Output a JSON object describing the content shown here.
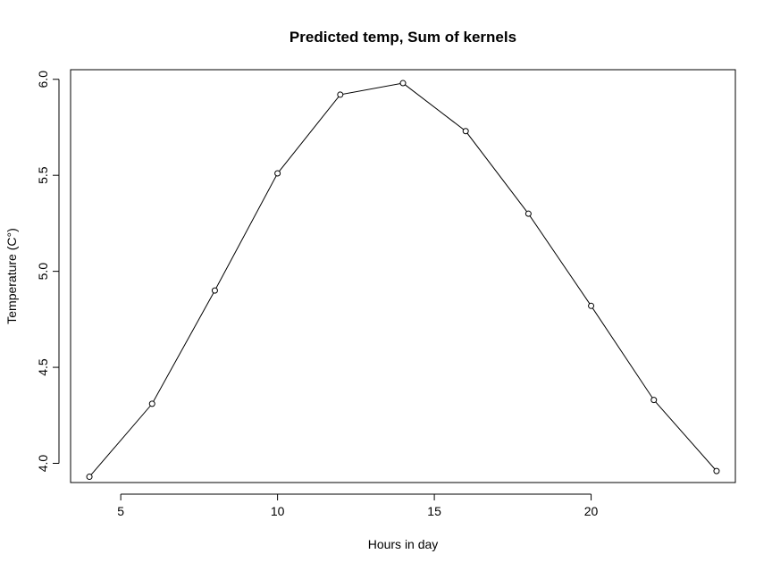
{
  "chart_data": {
    "type": "line",
    "title": "Predicted temp, Sum of kernels",
    "xlabel": "Hours in day",
    "ylabel": "Temperature (C°)",
    "xlim": [
      3.4,
      24.6
    ],
    "ylim": [
      3.9,
      6.05
    ],
    "x_ticks": [
      5,
      10,
      15,
      20
    ],
    "y_ticks": [
      4.0,
      4.5,
      5.0,
      5.5,
      6.0
    ],
    "x_tick_labels": [
      "5",
      "10",
      "15",
      "20"
    ],
    "y_tick_labels": [
      "4.0",
      "4.5",
      "5.0",
      "5.5",
      "6.0"
    ],
    "grid": false,
    "series": [
      {
        "x": [
          4,
          6,
          8,
          10,
          12,
          14,
          16,
          18,
          20,
          22,
          24
        ],
        "y": [
          3.93,
          4.31,
          4.9,
          5.51,
          5.92,
          5.98,
          5.73,
          5.3,
          4.82,
          4.33,
          3.96
        ],
        "marker": "open-circle",
        "color": "#000000"
      }
    ]
  }
}
